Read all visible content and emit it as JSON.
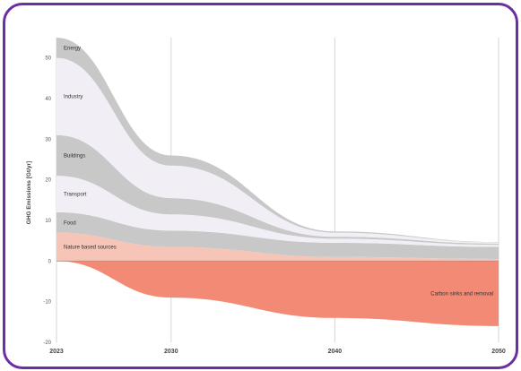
{
  "chart_data": {
    "type": "area",
    "ylabel": "GHG Emissions [Gt/yr]",
    "xlabel": "",
    "x": [
      2023,
      2030,
      2040,
      2050
    ],
    "x_tick_labels": [
      "2023",
      "2030",
      "2040",
      "2050"
    ],
    "ylim": [
      -20,
      55
    ],
    "y_ticks": [
      -20,
      -10,
      0,
      10,
      20,
      30,
      40,
      50
    ],
    "grid": "vertical",
    "stack_above_zero": [
      {
        "name": "Nature based sources",
        "label": "Nature based sources",
        "color": "#f7c4b8",
        "values": [
          7,
          3.5,
          1,
          0.5
        ]
      },
      {
        "name": "Food",
        "label": "Food",
        "color": "#c8c8c8",
        "values": [
          5,
          4,
          3.5,
          3
        ]
      },
      {
        "name": "Transport",
        "label": "Transport",
        "color": "#f1eff5",
        "values": [
          9,
          4,
          1,
          0.5
        ]
      },
      {
        "name": "Buildings",
        "label": "Buildings",
        "color": "#c8c8c8",
        "values": [
          10,
          4,
          0.5,
          0.3
        ]
      },
      {
        "name": "Industry",
        "label": "Industry",
        "color": "#f1eff5",
        "values": [
          19,
          8,
          1,
          0.3
        ]
      },
      {
        "name": "Energy",
        "label": "Energy",
        "color": "#c8c8c8",
        "values": [
          5,
          2.5,
          0.3,
          0.1
        ]
      }
    ],
    "below_zero": {
      "name": "Carbon sinks and removal",
      "label": "Carbon sinks and removal",
      "color": "#f28a75",
      "values": [
        0,
        -9,
        -14,
        -16
      ]
    }
  }
}
